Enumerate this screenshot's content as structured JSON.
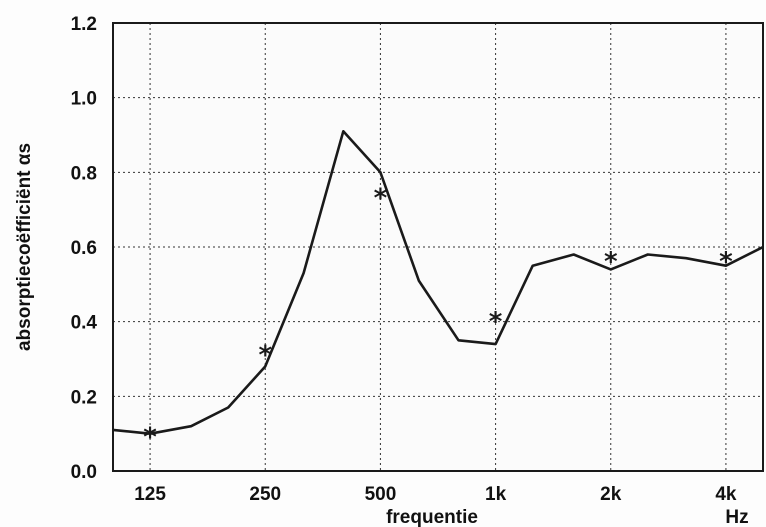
{
  "chart_data": {
    "type": "line",
    "title": "",
    "xlabel": "frequentie",
    "ylabel": "absorptiecoëfficiënt αs",
    "x_unit": "Hz",
    "x_scale": "log",
    "xlim": [
      100,
      5000
    ],
    "ylim": [
      0,
      1.2
    ],
    "grid": true,
    "grid_style": "dotted",
    "x_ticks": [
      {
        "value": 125,
        "label": "125"
      },
      {
        "value": 250,
        "label": "250"
      },
      {
        "value": 500,
        "label": "500"
      },
      {
        "value": 1000,
        "label": "1k"
      },
      {
        "value": 2000,
        "label": "2k"
      },
      {
        "value": 4000,
        "label": "4k"
      }
    ],
    "y_ticks": [
      {
        "value": 0.0,
        "label": "0.0"
      },
      {
        "value": 0.2,
        "label": "0.2"
      },
      {
        "value": 0.4,
        "label": "0.4"
      },
      {
        "value": 0.6,
        "label": "0.6"
      },
      {
        "value": 0.8,
        "label": "0.8"
      },
      {
        "value": 1.0,
        "label": "1.0"
      },
      {
        "value": 1.2,
        "label": "1.2"
      }
    ],
    "series": [
      {
        "style": "line",
        "color": "#1a1a1a",
        "points": [
          {
            "x": 100,
            "y": 0.11
          },
          {
            "x": 125,
            "y": 0.1
          },
          {
            "x": 160,
            "y": 0.12
          },
          {
            "x": 200,
            "y": 0.17
          },
          {
            "x": 250,
            "y": 0.28
          },
          {
            "x": 315,
            "y": 0.53
          },
          {
            "x": 400,
            "y": 0.91
          },
          {
            "x": 500,
            "y": 0.8
          },
          {
            "x": 630,
            "y": 0.51
          },
          {
            "x": 800,
            "y": 0.35
          },
          {
            "x": 1000,
            "y": 0.34
          },
          {
            "x": 1250,
            "y": 0.55
          },
          {
            "x": 1600,
            "y": 0.58
          },
          {
            "x": 2000,
            "y": 0.54
          },
          {
            "x": 2500,
            "y": 0.58
          },
          {
            "x": 3150,
            "y": 0.57
          },
          {
            "x": 4000,
            "y": 0.55
          },
          {
            "x": 5000,
            "y": 0.6
          }
        ]
      },
      {
        "style": "markers",
        "marker": "*",
        "color": "#1a1a1a",
        "points": [
          {
            "x": 125,
            "y": 0.1
          },
          {
            "x": 250,
            "y": 0.32
          },
          {
            "x": 500,
            "y": 0.74
          },
          {
            "x": 1000,
            "y": 0.41
          },
          {
            "x": 2000,
            "y": 0.57
          },
          {
            "x": 4000,
            "y": 0.57
          }
        ]
      }
    ]
  }
}
